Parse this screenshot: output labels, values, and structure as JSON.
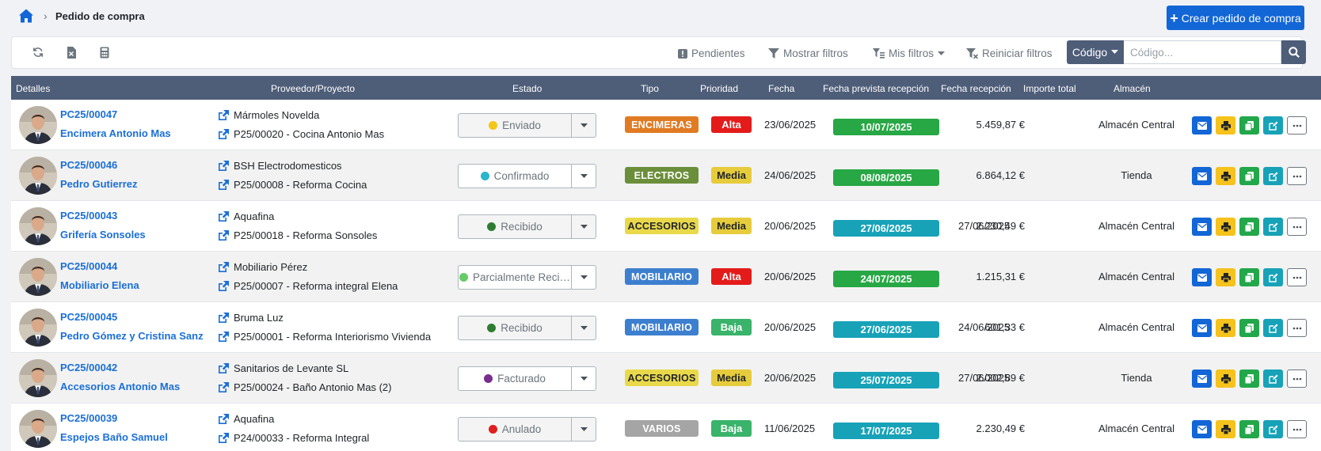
{
  "breadcrumb": {
    "title": "Pedido de compra"
  },
  "create_button": {
    "label": "Crear pedido de compra"
  },
  "toolbar": {
    "pendientes": "Pendientes",
    "mostrar_filtros": "Mostrar filtros",
    "mis_filtros": "Mis filtros",
    "reiniciar_filtros": "Reiniciar filtros",
    "search_select": "Código",
    "search_placeholder": "Código..."
  },
  "table": {
    "headers": {
      "detalles": "Detalles",
      "proveedor": "Proveedor/Proyecto",
      "estado": "Estado",
      "tipo": "Tipo",
      "prioridad": "Prioridad",
      "fecha": "Fecha",
      "fecha_prevista": "Fecha prevista recepción",
      "fecha_recepcion": "Fecha recepción",
      "importe": "Importe total",
      "almacen": "Almacén"
    },
    "rows": [
      {
        "code": "PC25/00047",
        "name": "Encimera Antonio Mas",
        "proveedor": "Mármoles Novelda",
        "proyecto": "P25/00020 - Cocina Antonio Mas",
        "estado": "Enviado",
        "tipo": "ENCIMERAS",
        "prioridad": "Alta",
        "fecha": "23/06/2025",
        "fecha_prevista": "10/07/2025",
        "fecha_recepcion": "",
        "importe": "5.459,87 €",
        "almacen": "Almacén Central"
      },
      {
        "code": "PC25/00046",
        "name": "Pedro Gutierrez",
        "proveedor": "BSH Electrodomesticos",
        "proyecto": "P25/00008 - Reforma Cocina",
        "estado": "Confirmado",
        "tipo": "ELECTROS",
        "prioridad": "Media",
        "fecha": "24/06/2025",
        "fecha_prevista": "08/08/2025",
        "fecha_recepcion": "",
        "importe": "6.864,12 €",
        "almacen": "Tienda"
      },
      {
        "code": "PC25/00043",
        "name": "Grifería Sonsoles",
        "proveedor": "Aquafina",
        "proyecto": "P25/00018 - Reforma Sonsoles",
        "estado": "Recibido",
        "tipo": "ACCESORIOS",
        "prioridad": "Media",
        "fecha": "20/06/2025",
        "fecha_prevista": "27/06/2025",
        "fecha_recepcion": "27/06/2025",
        "importe": "2.230,49 €",
        "almacen": "Almacén Central"
      },
      {
        "code": "PC25/00044",
        "name": "Mobiliario Elena",
        "proveedor": "Mobiliario Pérez",
        "proyecto": "P25/00007 - Reforma integral Elena",
        "estado": "Parcialmente Reci…",
        "tipo": "MOBILIARIO",
        "prioridad": "Alta",
        "fecha": "20/06/2025",
        "fecha_prevista": "24/07/2025",
        "fecha_recepcion": "",
        "importe": "1.215,31 €",
        "almacen": "Almacén Central"
      },
      {
        "code": "PC25/00045",
        "name": "Pedro Gómez y Cristina Sanz",
        "proveedor": "Bruma Luz",
        "proyecto": "P25/00001 - Reforma Interiorismo Vivienda",
        "estado": "Recibido",
        "tipo": "MOBILIARIO",
        "prioridad": "Baja",
        "fecha": "20/06/2025",
        "fecha_prevista": "27/06/2025",
        "fecha_recepcion": "24/06/2025",
        "importe": "601,33 €",
        "almacen": "Almacén Central"
      },
      {
        "code": "PC25/00042",
        "name": "Accesorios Antonio Mas",
        "proveedor": "Sanitarios de Levante SL",
        "proyecto": "P25/00024 - Baño Antonio Mas (2)",
        "estado": "Facturado",
        "tipo": "ACCESORIOS",
        "prioridad": "Media",
        "fecha": "20/06/2025",
        "fecha_prevista": "25/07/2025",
        "fecha_recepcion": "27/06/2025",
        "importe": "2.002,89 €",
        "almacen": "Tienda"
      },
      {
        "code": "PC25/00039",
        "name": "Espejos Baño Samuel",
        "proveedor": "Aquafina",
        "proyecto": "P24/00033 - Reforma Integral",
        "estado": "Anulado",
        "tipo": "VARIOS",
        "prioridad": "Baja",
        "fecha": "11/06/2025",
        "fecha_prevista": "17/07/2025",
        "fecha_recepcion": "",
        "importe": "2.230,49 €",
        "almacen": "Almacén Central"
      }
    ]
  },
  "colors": {
    "estado": {
      "Enviado": "#f5c518",
      "Confirmado": "#2ab5cc",
      "Recibido": "#2e7d32",
      "Parcialmente Reci…": "#66cc66",
      "Facturado": "#7b2d8e",
      "Anulado": "#e01e1e"
    },
    "tipo": {
      "ENCIMERAS": "#e07b23",
      "ELECTROS": "#6b8e3a",
      "ACCESORIOS": "#e9d94a",
      "MOBILIARIO": "#3d7fcf",
      "VARIOS": "#a5a5a5"
    },
    "prioridad": {
      "Alta": "#e41b1b",
      "Media": "#e6cc3c",
      "Baja": "#3ab36b"
    },
    "fecha_prevista": {
      "green": "#28a745",
      "teal": "#17a2b8"
    }
  }
}
